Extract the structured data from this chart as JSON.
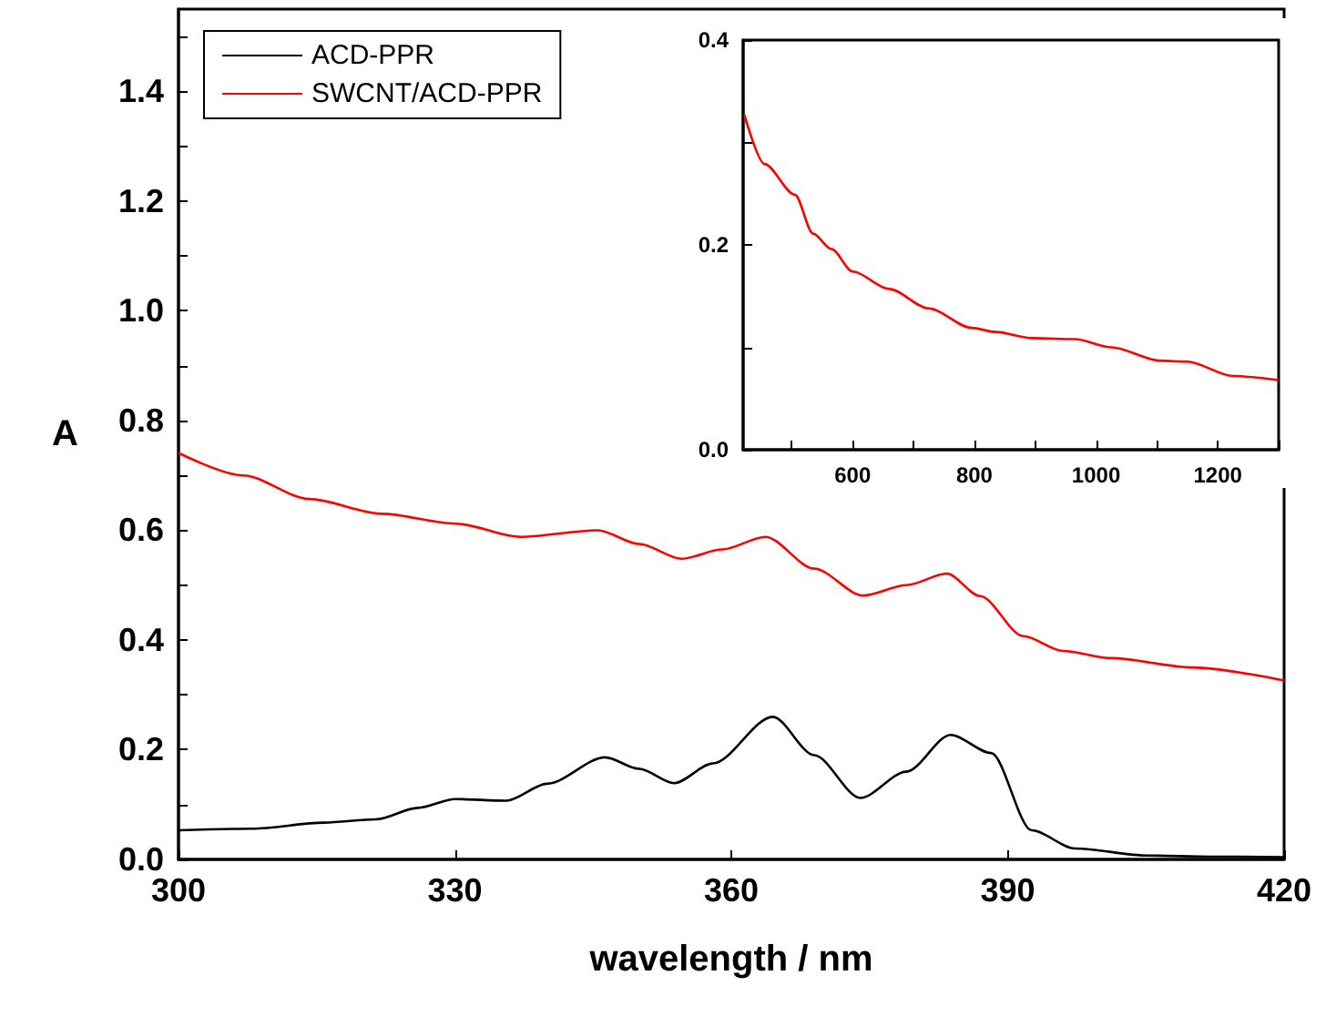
{
  "chart_data": [
    {
      "type": "line",
      "xlabel": "wavelength / nm",
      "ylabel": "A",
      "legend": "top left",
      "grid": false,
      "marker": "none",
      "line_style": "solid",
      "xlim": [
        300,
        420
      ],
      "xticks": [
        300,
        330,
        360,
        390,
        420
      ],
      "ylim": [
        0,
        1.55
      ],
      "yticks": [
        {
          "value": 0,
          "label": "0.0"
        },
        {
          "value": 0.1,
          "label": null
        },
        {
          "value": 0.2,
          "label": "0.2"
        },
        {
          "value": 0.3,
          "label": null
        },
        {
          "value": 0.4,
          "label": "0.4"
        },
        {
          "value": 0.5,
          "label": null
        },
        {
          "value": 0.6,
          "label": "0.6"
        },
        {
          "value": 0.7,
          "label": null
        },
        {
          "value": 0.8,
          "label": "0.8"
        },
        {
          "value": 0.9,
          "label": null
        },
        {
          "value": 1,
          "label": "1.0"
        },
        {
          "value": 1.1,
          "label": null
        },
        {
          "value": 1.2,
          "label": "1.2"
        },
        {
          "value": 1.3,
          "label": null
        },
        {
          "value": 1.4,
          "label": "1.4"
        },
        {
          "value": 1.5,
          "label": null
        }
      ],
      "series": [
        {
          "name": "ACD-PPR",
          "color": "#000000",
          "x": [
            300,
            308,
            315.8,
            321.4,
            326,
            330,
            335.6,
            340,
            346.3,
            350,
            353.8,
            358,
            364.5,
            369,
            374,
            379,
            383.8,
            388.2,
            392.6,
            397.3,
            405.2,
            412,
            420
          ],
          "values": [
            0.053,
            0.056,
            0.067,
            0.073,
            0.094,
            0.11,
            0.107,
            0.138,
            0.186,
            0.165,
            0.139,
            0.175,
            0.26,
            0.19,
            0.112,
            0.16,
            0.227,
            0.194,
            0.053,
            0.02,
            0.007,
            0.005,
            0.004
          ]
        },
        {
          "name": "SWCNT/ACD-PPR",
          "color": "#ff0000",
          "x": [
            300,
            307,
            314.2,
            322.1,
            330.1,
            337.2,
            345.5,
            350,
            354.6,
            359,
            363.7,
            369,
            374.3,
            379,
            383.4,
            387,
            391.7,
            396,
            401.2,
            410,
            420
          ],
          "values": [
            0.741,
            0.7,
            0.657,
            0.63,
            0.612,
            0.588,
            0.6,
            0.575,
            0.548,
            0.565,
            0.588,
            0.53,
            0.481,
            0.5,
            0.521,
            0.48,
            0.407,
            0.38,
            0.367,
            0.35,
            0.326
          ]
        }
      ]
    },
    {
      "type": "line",
      "grid": false,
      "marker": "none",
      "line_style": "solid",
      "xlim": [
        420,
        1300
      ],
      "xticks": [
        {
          "value": 500,
          "label": null
        },
        600,
        {
          "value": 700,
          "label": null
        },
        800,
        {
          "value": 900,
          "label": null
        },
        1000,
        {
          "value": 1100,
          "label": null
        },
        1200,
        {
          "value": 1300,
          "label": null
        }
      ],
      "ylim": [
        0,
        0.4
      ],
      "yticks": [
        {
          "value": 0,
          "label": "0.0"
        },
        {
          "value": 0.1,
          "label": null
        },
        {
          "value": 0.2,
          "label": "0.2"
        },
        {
          "value": 0.3,
          "label": null
        },
        {
          "value": 0.4,
          "label": "0.4"
        }
      ],
      "series": [
        {
          "color": "#ff0000",
          "x": [
            422,
            455,
            505,
            535,
            565,
            600,
            660,
            725,
            795,
            835,
            895,
            965,
            1025,
            1105,
            1150,
            1225,
            1300
          ],
          "values": [
            0.327,
            0.279,
            0.249,
            0.211,
            0.196,
            0.174,
            0.157,
            0.138,
            0.119,
            0.115,
            0.109,
            0.108,
            0.1,
            0.087,
            0.086,
            0.072,
            0.068
          ]
        }
      ]
    }
  ]
}
